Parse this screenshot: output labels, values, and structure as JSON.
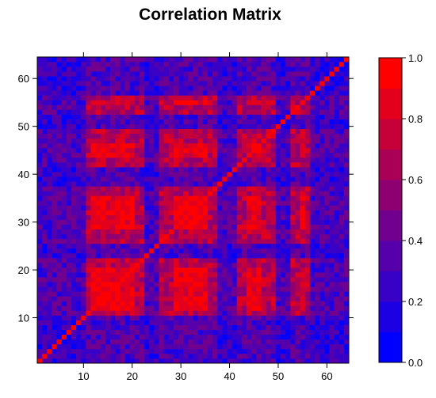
{
  "chart_data": {
    "type": "heatmap",
    "title": "Correlation Matrix",
    "xlabel": "",
    "ylabel": "",
    "n": 64,
    "xlim": [
      0.5,
      64.5
    ],
    "ylim": [
      0.5,
      64.5
    ],
    "x_ticks": [
      10,
      20,
      30,
      40,
      50,
      60
    ],
    "y_ticks": [
      10,
      20,
      30,
      40,
      50,
      60
    ],
    "value_range": [
      0.0,
      1.0
    ],
    "colorbar": {
      "levels": 10,
      "ticks": [
        "0.0",
        "0.2",
        "0.4",
        "0.6",
        "0.8",
        "1.0"
      ],
      "low_color": "#0000ff",
      "high_color": "#ff0000"
    },
    "grid": false,
    "legend_position": "right"
  }
}
